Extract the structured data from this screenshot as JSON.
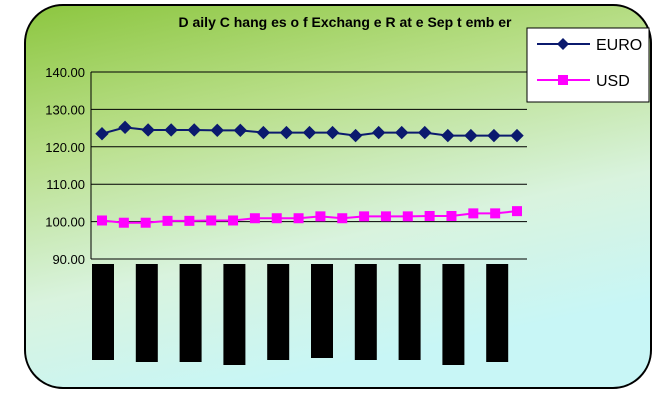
{
  "chart_data": {
    "type": "line",
    "title": "D aily C hang es o f Exchang e R at e Sep t emb er",
    "xlabel": "",
    "ylabel": "",
    "ylim": [
      90,
      140
    ],
    "yticks": [
      "140.00",
      "130.00",
      "120.00",
      "110.00",
      "100.00",
      "90.00"
    ],
    "grid": true,
    "legend": "top-right",
    "series": [
      {
        "name": "EURO",
        "color": "#0b1a6e",
        "marker": "diamond",
        "values": [
          123.5,
          125.2,
          124.5,
          124.5,
          124.5,
          124.4,
          124.4,
          123.8,
          123.8,
          123.8,
          123.8,
          123.0,
          123.8,
          123.8,
          123.8,
          123.0,
          123.0,
          123.0,
          123.0
        ]
      },
      {
        "name": "USD",
        "color": "#ff00ff",
        "marker": "square",
        "values": [
          100.3,
          99.7,
          99.7,
          100.2,
          100.2,
          100.3,
          100.3,
          100.9,
          100.9,
          100.9,
          101.4,
          100.9,
          101.4,
          101.4,
          101.4,
          101.5,
          101.5,
          102.2,
          102.2,
          102.8
        ]
      }
    ]
  }
}
